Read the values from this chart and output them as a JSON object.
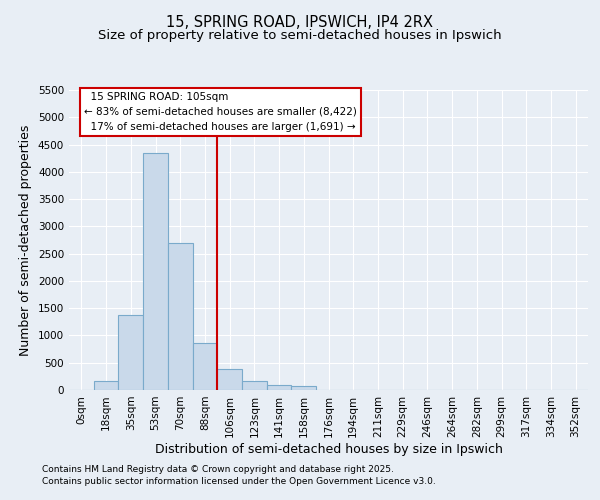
{
  "title_line1": "15, SPRING ROAD, IPSWICH, IP4 2RX",
  "title_line2": "Size of property relative to semi-detached houses in Ipswich",
  "xlabel": "Distribution of semi-detached houses by size in Ipswich",
  "ylabel": "Number of semi-detached properties",
  "bin_labels": [
    "0sqm",
    "18sqm",
    "35sqm",
    "53sqm",
    "70sqm",
    "88sqm",
    "106sqm",
    "123sqm",
    "141sqm",
    "158sqm",
    "176sqm",
    "194sqm",
    "211sqm",
    "229sqm",
    "246sqm",
    "264sqm",
    "282sqm",
    "299sqm",
    "317sqm",
    "334sqm",
    "352sqm"
  ],
  "bar_values": [
    5,
    170,
    1380,
    4350,
    2700,
    870,
    390,
    170,
    100,
    70,
    0,
    0,
    0,
    0,
    0,
    0,
    0,
    0,
    0,
    0,
    0
  ],
  "bar_color": "#c9d9ea",
  "bar_edge_color": "#7aaacb",
  "vline_bin_index": 6,
  "vline_color": "#cc0000",
  "annotation_text": "  15 SPRING ROAD: 105sqm\n← 83% of semi-detached houses are smaller (8,422)\n  17% of semi-detached houses are larger (1,691) →",
  "annotation_box_color": "#ffffff",
  "annotation_box_edge_color": "#cc0000",
  "ylim": [
    0,
    5500
  ],
  "yticks": [
    0,
    500,
    1000,
    1500,
    2000,
    2500,
    3000,
    3500,
    4000,
    4500,
    5000,
    5500
  ],
  "background_color": "#e8eef5",
  "plot_bg_color": "#e8eef5",
  "footer_line1": "Contains HM Land Registry data © Crown copyright and database right 2025.",
  "footer_line2": "Contains public sector information licensed under the Open Government Licence v3.0.",
  "grid_color": "#ffffff",
  "title_fontsize": 10.5,
  "subtitle_fontsize": 9.5,
  "axis_label_fontsize": 9,
  "tick_fontsize": 7.5,
  "footer_fontsize": 6.5
}
